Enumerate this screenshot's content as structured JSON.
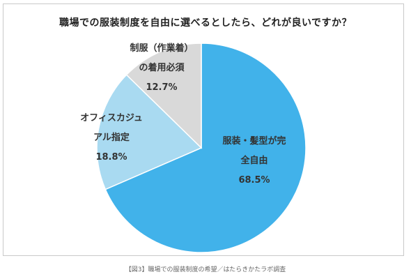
{
  "chart_data": {
    "type": "pie",
    "title": "職場での服装制度を自由に選べるとしたら、どれが良いですか？",
    "slices": [
      {
        "label_lines": [
          "服装・髪型が完",
          "全自由"
        ],
        "value": 68.5,
        "value_label": "68.5%",
        "color": "#41b2ea"
      },
      {
        "label_lines": [
          "オフィスカジュ",
          "アル指定"
        ],
        "value": 18.8,
        "value_label": "18.8%",
        "color": "#a9daf1"
      },
      {
        "label_lines": [
          "制服（作業着）",
          "の着用必須"
        ],
        "value": 12.7,
        "value_label": "12.7%",
        "color": "#d9d9d9"
      }
    ],
    "start_angle_deg": 0,
    "direction": "clockwise",
    "legend": "none"
  },
  "caption": "【図3】職場での服装制度の希望／はたらきかたラボ調査"
}
